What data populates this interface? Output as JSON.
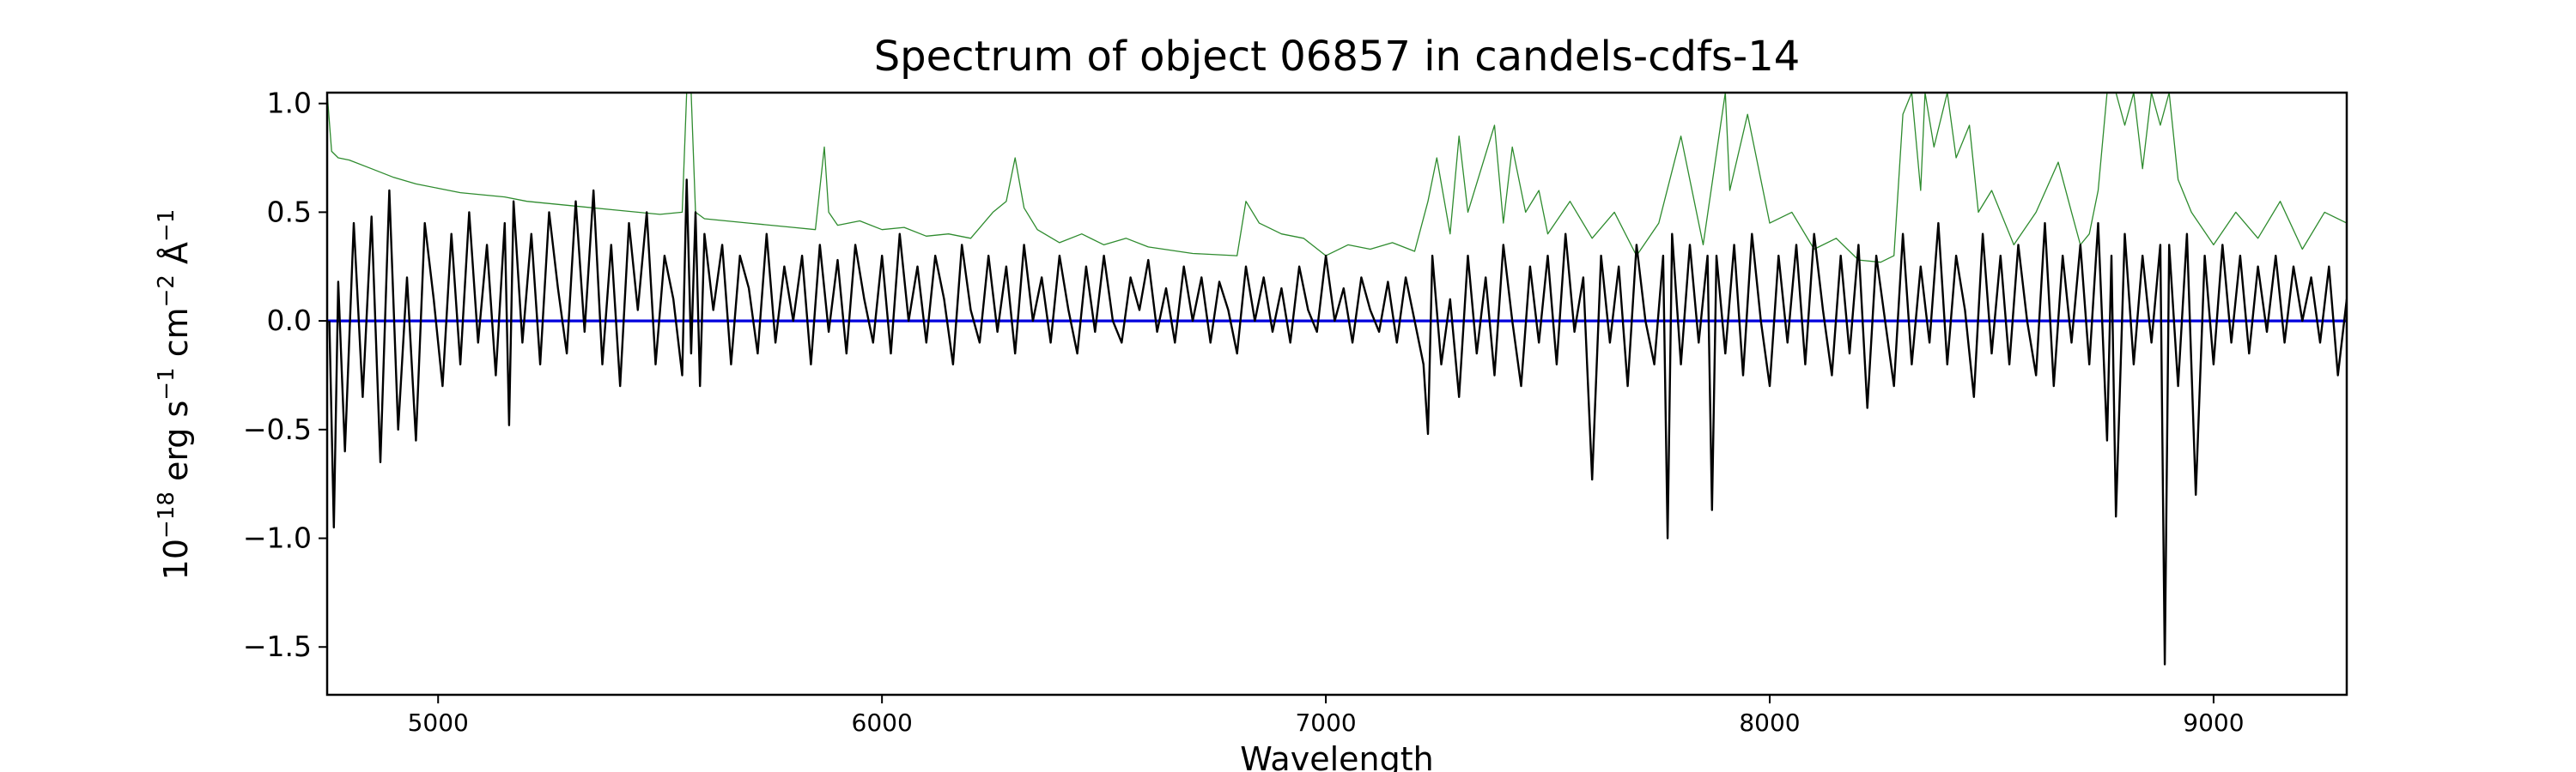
{
  "chart_data": {
    "type": "line",
    "title": "Spectrum of object 06857 in candels-cdfs-14",
    "xlabel": "Wavelength",
    "ylabel_parts": [
      "10",
      "−18",
      " erg s",
      "−1",
      " cm",
      "−2",
      " Å",
      "−1"
    ],
    "xlim": [
      4750,
      9300
    ],
    "ylim": [
      -1.72,
      1.05
    ],
    "x_ticks": [
      5000,
      6000,
      7000,
      8000,
      9000
    ],
    "x_tick_labels": [
      "5000",
      "6000",
      "7000",
      "8000",
      "9000"
    ],
    "y_ticks": [
      -1.5,
      -1.0,
      -0.5,
      0.0,
      0.5,
      1.0
    ],
    "y_tick_labels": [
      "−1.5",
      "−1.0",
      "−0.5",
      "0.0",
      "0.5",
      "1.0"
    ],
    "grid": false,
    "series": [
      {
        "color": "#2e8b2e",
        "width": 1.3,
        "x": [
          4750,
          4760,
          4775,
          4800,
          4850,
          4900,
          4950,
          5000,
          5050,
          5100,
          5150,
          5200,
          5300,
          5400,
          5500,
          5550,
          5560,
          5570,
          5580,
          5600,
          5700,
          5800,
          5850,
          5870,
          5880,
          5900,
          5950,
          6000,
          6050,
          6100,
          6150,
          6200,
          6250,
          6280,
          6300,
          6320,
          6350,
          6400,
          6450,
          6500,
          6550,
          6600,
          6700,
          6800,
          6820,
          6850,
          6900,
          6950,
          7000,
          7050,
          7100,
          7150,
          7200,
          7230,
          7250,
          7280,
          7300,
          7320,
          7350,
          7380,
          7400,
          7420,
          7450,
          7480,
          7500,
          7550,
          7600,
          7650,
          7700,
          7750,
          7800,
          7850,
          7900,
          7910,
          7950,
          8000,
          8050,
          8100,
          8150,
          8200,
          8250,
          8280,
          8300,
          8320,
          8340,
          8350,
          8370,
          8400,
          8420,
          8450,
          8470,
          8500,
          8550,
          8600,
          8650,
          8680,
          8700,
          8720,
          8740,
          8760,
          8780,
          8800,
          8820,
          8840,
          8860,
          8880,
          8900,
          8920,
          8950,
          9000,
          9050,
          9100,
          9150,
          9200,
          9250,
          9300
        ],
        "y": [
          1.05,
          0.78,
          0.75,
          0.74,
          0.7,
          0.66,
          0.63,
          0.61,
          0.59,
          0.58,
          0.57,
          0.55,
          0.53,
          0.51,
          0.49,
          0.5,
          1.05,
          1.05,
          0.5,
          0.47,
          0.45,
          0.43,
          0.42,
          0.8,
          0.5,
          0.44,
          0.46,
          0.42,
          0.43,
          0.39,
          0.4,
          0.38,
          0.5,
          0.55,
          0.75,
          0.52,
          0.42,
          0.36,
          0.4,
          0.35,
          0.38,
          0.34,
          0.31,
          0.3,
          0.55,
          0.45,
          0.4,
          0.38,
          0.3,
          0.35,
          0.33,
          0.36,
          0.32,
          0.55,
          0.75,
          0.4,
          0.85,
          0.5,
          0.7,
          0.9,
          0.45,
          0.8,
          0.5,
          0.6,
          0.4,
          0.55,
          0.38,
          0.5,
          0.3,
          0.45,
          0.85,
          0.35,
          1.05,
          0.6,
          0.95,
          0.45,
          0.5,
          0.33,
          0.38,
          0.28,
          0.27,
          0.3,
          0.95,
          1.05,
          0.6,
          1.05,
          0.8,
          1.05,
          0.75,
          0.9,
          0.5,
          0.6,
          0.35,
          0.5,
          0.73,
          0.5,
          0.35,
          0.4,
          0.6,
          1.05,
          1.05,
          0.9,
          1.05,
          0.7,
          1.05,
          0.9,
          1.05,
          0.65,
          0.5,
          0.35,
          0.5,
          0.38,
          0.55,
          0.33,
          0.5,
          0.45
        ]
      },
      {
        "color": "#0000dd",
        "width": 3.2,
        "x": [
          4750,
          9300
        ],
        "y": [
          0.0,
          0.0
        ]
      },
      {
        "color": "#000000",
        "width": 2.4,
        "x": [
          4755,
          4765,
          4775,
          4790,
          4810,
          4830,
          4850,
          4870,
          4890,
          4910,
          4930,
          4950,
          4970,
          4990,
          5010,
          5030,
          5050,
          5070,
          5090,
          5110,
          5130,
          5150,
          5160,
          5170,
          5190,
          5210,
          5230,
          5250,
          5270,
          5290,
          5310,
          5330,
          5350,
          5370,
          5390,
          5410,
          5430,
          5450,
          5470,
          5490,
          5510,
          5530,
          5550,
          5560,
          5570,
          5580,
          5590,
          5600,
          5620,
          5640,
          5660,
          5680,
          5700,
          5720,
          5740,
          5760,
          5780,
          5800,
          5820,
          5840,
          5860,
          5880,
          5900,
          5920,
          5940,
          5960,
          5980,
          6000,
          6020,
          6040,
          6060,
          6080,
          6100,
          6120,
          6140,
          6160,
          6180,
          6200,
          6220,
          6240,
          6260,
          6280,
          6300,
          6320,
          6340,
          6360,
          6380,
          6400,
          6420,
          6440,
          6460,
          6480,
          6500,
          6520,
          6540,
          6560,
          6580,
          6600,
          6620,
          6640,
          6660,
          6680,
          6700,
          6720,
          6740,
          6760,
          6780,
          6800,
          6820,
          6840,
          6860,
          6880,
          6900,
          6920,
          6940,
          6960,
          6980,
          7000,
          7020,
          7040,
          7060,
          7080,
          7100,
          7120,
          7140,
          7160,
          7180,
          7200,
          7220,
          7230,
          7240,
          7260,
          7280,
          7300,
          7320,
          7340,
          7360,
          7380,
          7400,
          7420,
          7440,
          7460,
          7480,
          7500,
          7520,
          7540,
          7560,
          7580,
          7600,
          7620,
          7640,
          7660,
          7680,
          7700,
          7720,
          7740,
          7760,
          7770,
          7780,
          7800,
          7820,
          7840,
          7860,
          7870,
          7880,
          7900,
          7920,
          7940,
          7960,
          7980,
          8000,
          8020,
          8040,
          8060,
          8080,
          8100,
          8120,
          8140,
          8160,
          8180,
          8200,
          8220,
          8240,
          8260,
          8280,
          8300,
          8320,
          8340,
          8360,
          8380,
          8400,
          8420,
          8440,
          8460,
          8480,
          8500,
          8520,
          8540,
          8560,
          8580,
          8600,
          8620,
          8640,
          8660,
          8680,
          8700,
          8720,
          8740,
          8760,
          8770,
          8780,
          8800,
          8820,
          8840,
          8860,
          8880,
          8890,
          8900,
          8920,
          8940,
          8960,
          8980,
          9000,
          9020,
          9040,
          9060,
          9080,
          9100,
          9120,
          9140,
          9160,
          9180,
          9200,
          9220,
          9240,
          9260,
          9280,
          9300
        ],
        "y": [
          0.0,
          -0.95,
          0.18,
          -0.6,
          0.45,
          -0.35,
          0.48,
          -0.65,
          0.6,
          -0.5,
          0.2,
          -0.55,
          0.45,
          0.1,
          -0.3,
          0.4,
          -0.2,
          0.5,
          -0.1,
          0.35,
          -0.25,
          0.45,
          -0.48,
          0.55,
          -0.1,
          0.4,
          -0.2,
          0.5,
          0.15,
          -0.15,
          0.55,
          -0.05,
          0.6,
          -0.2,
          0.35,
          -0.3,
          0.45,
          0.05,
          0.5,
          -0.2,
          0.3,
          0.1,
          -0.25,
          0.65,
          -0.15,
          0.5,
          -0.3,
          0.4,
          0.05,
          0.35,
          -0.2,
          0.3,
          0.15,
          -0.15,
          0.4,
          -0.1,
          0.25,
          0.0,
          0.3,
          -0.2,
          0.35,
          -0.05,
          0.28,
          -0.15,
          0.35,
          0.1,
          -0.1,
          0.3,
          -0.15,
          0.4,
          0.0,
          0.25,
          -0.1,
          0.3,
          0.1,
          -0.2,
          0.35,
          0.05,
          -0.1,
          0.3,
          -0.05,
          0.25,
          -0.15,
          0.35,
          0.0,
          0.2,
          -0.1,
          0.3,
          0.05,
          -0.15,
          0.25,
          -0.05,
          0.3,
          0.0,
          -0.1,
          0.2,
          0.05,
          0.28,
          -0.05,
          0.15,
          -0.1,
          0.25,
          0.0,
          0.2,
          -0.1,
          0.18,
          0.05,
          -0.15,
          0.25,
          0.0,
          0.2,
          -0.05,
          0.15,
          -0.1,
          0.25,
          0.05,
          -0.05,
          0.3,
          0.0,
          0.15,
          -0.1,
          0.2,
          0.05,
          -0.05,
          0.18,
          -0.1,
          0.2,
          0.0,
          -0.2,
          -0.52,
          0.3,
          -0.2,
          0.1,
          -0.35,
          0.3,
          -0.15,
          0.2,
          -0.25,
          0.35,
          0.0,
          -0.3,
          0.25,
          -0.1,
          0.3,
          -0.2,
          0.4,
          -0.05,
          0.2,
          -0.73,
          0.3,
          -0.1,
          0.25,
          -0.3,
          0.35,
          0.0,
          -0.2,
          0.3,
          -1.0,
          0.4,
          -0.2,
          0.35,
          -0.1,
          0.3,
          -0.87,
          0.3,
          -0.15,
          0.35,
          -0.25,
          0.4,
          0.0,
          -0.3,
          0.3,
          -0.1,
          0.35,
          -0.2,
          0.4,
          0.05,
          -0.25,
          0.3,
          -0.15,
          0.35,
          -0.4,
          0.3,
          0.0,
          -0.3,
          0.4,
          -0.2,
          0.25,
          -0.1,
          0.45,
          -0.2,
          0.3,
          0.05,
          -0.35,
          0.4,
          -0.15,
          0.3,
          -0.2,
          0.35,
          0.0,
          -0.25,
          0.45,
          -0.3,
          0.3,
          -0.1,
          0.35,
          -0.2,
          0.45,
          -0.55,
          0.3,
          -0.9,
          0.4,
          -0.2,
          0.3,
          -0.1,
          0.35,
          -1.58,
          0.35,
          -0.3,
          0.4,
          -0.8,
          0.3,
          -0.2,
          0.35,
          -0.1,
          0.3,
          -0.15,
          0.25,
          -0.05,
          0.3,
          -0.1,
          0.25,
          0.0,
          0.2,
          -0.1,
          0.25,
          -0.25,
          0.1
        ]
      }
    ]
  }
}
